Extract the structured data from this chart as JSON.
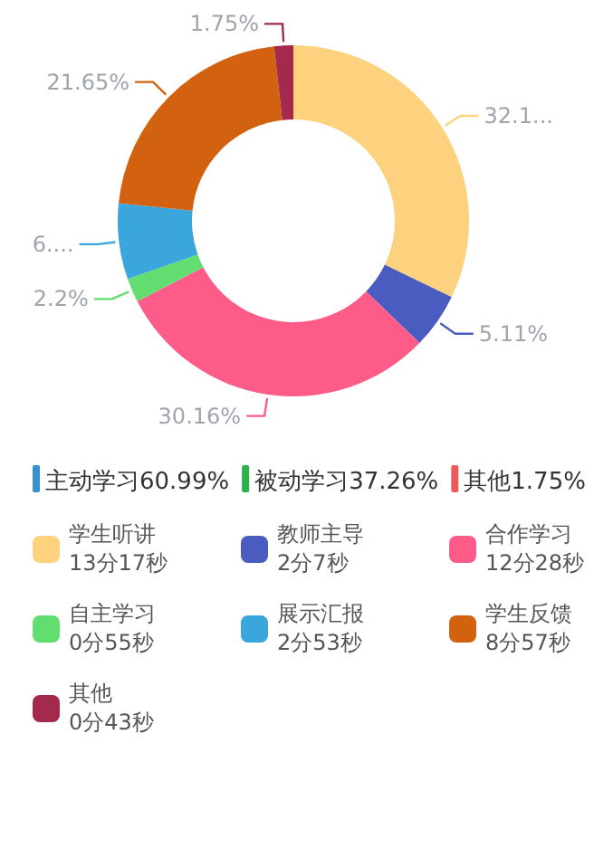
{
  "chart_data": {
    "type": "donut",
    "categories": [
      "学生听讲\n13分17秒",
      "教师主导\n2分7秒",
      "合作学习\n12分28秒",
      "自主学习\n0分55秒",
      "展示汇报\n2分53秒",
      "学生反馈\n8分57秒",
      "其他\n0分43秒"
    ],
    "values": [
      32.14,
      5.11,
      30.16,
      2.2,
      6.98,
      21.65,
      1.75
    ],
    "value_labels": [
      "32.1...",
      "5.11%",
      "30.16%",
      "2.2%",
      "6....",
      "21.65%",
      "1.75%"
    ],
    "colors": [
      "#fcd27e",
      "#4a5cbf",
      "#fe5c88",
      "#62dd70",
      "#3ba6dc",
      "#d2620f",
      "#a32a4c"
    ],
    "legend": "bottom",
    "annotations": [
      "主动学习60.99%",
      "被动学习37.26%",
      "其他1.75%"
    ]
  }
}
